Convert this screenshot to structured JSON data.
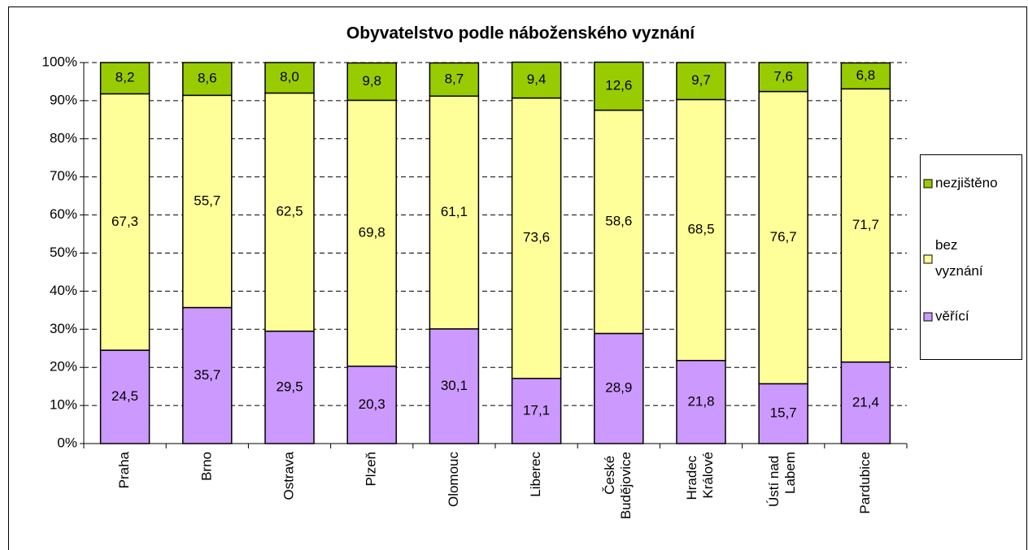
{
  "chart_data": {
    "type": "stacked_bar",
    "title": "Obyvatelstvo podle náboženského vyznání",
    "categories": [
      "Praha",
      "Brno",
      "Ostrava",
      "Plzeň",
      "Olomouc",
      "Liberec",
      "České Budějovice",
      "Hradec Králové",
      "Ústí nad Labem",
      "Pardubice"
    ],
    "series": [
      {
        "name": "věřící",
        "color": "#cc99ff",
        "values": [
          24.5,
          35.7,
          29.5,
          20.3,
          30.1,
          17.1,
          28.9,
          21.8,
          15.7,
          21.4
        ],
        "value_labels": [
          "24,5",
          "35,7",
          "29,5",
          "20,3",
          "30,1",
          "17,1",
          "28,9",
          "21,8",
          "15,7",
          "21,4"
        ]
      },
      {
        "name": "bez vyznání",
        "color": "#ffff99",
        "values": [
          67.3,
          55.7,
          62.5,
          69.8,
          61.1,
          73.6,
          58.6,
          68.5,
          76.7,
          71.7
        ],
        "value_labels": [
          "67,3",
          "55,7",
          "62,5",
          "69,8",
          "61,1",
          "73,6",
          "58,6",
          "68,5",
          "76,7",
          "71,7"
        ]
      },
      {
        "name": "nezjištěno",
        "color": "#99cc00",
        "values": [
          8.2,
          8.6,
          8.0,
          9.8,
          8.7,
          9.4,
          12.6,
          9.7,
          7.6,
          6.8
        ],
        "value_labels": [
          "8,2",
          "8,6",
          "8,0",
          "9,8",
          "8,7",
          "9,4",
          "12,6",
          "9,7",
          "7,6",
          "6,8"
        ]
      }
    ],
    "ylim": [
      0,
      100
    ],
    "yticks": [
      {
        "value": 0,
        "label": "0%"
      },
      {
        "value": 10,
        "label": "10%"
      },
      {
        "value": 20,
        "label": "20%"
      },
      {
        "value": 30,
        "label": "30%"
      },
      {
        "value": 40,
        "label": "40%"
      },
      {
        "value": 50,
        "label": "50%"
      },
      {
        "value": 60,
        "label": "60%"
      },
      {
        "value": 70,
        "label": "70%"
      },
      {
        "value": 80,
        "label": "80%"
      },
      {
        "value": 90,
        "label": "90%"
      },
      {
        "value": 100,
        "label": "100%"
      }
    ],
    "grid": true,
    "legend": "right"
  }
}
